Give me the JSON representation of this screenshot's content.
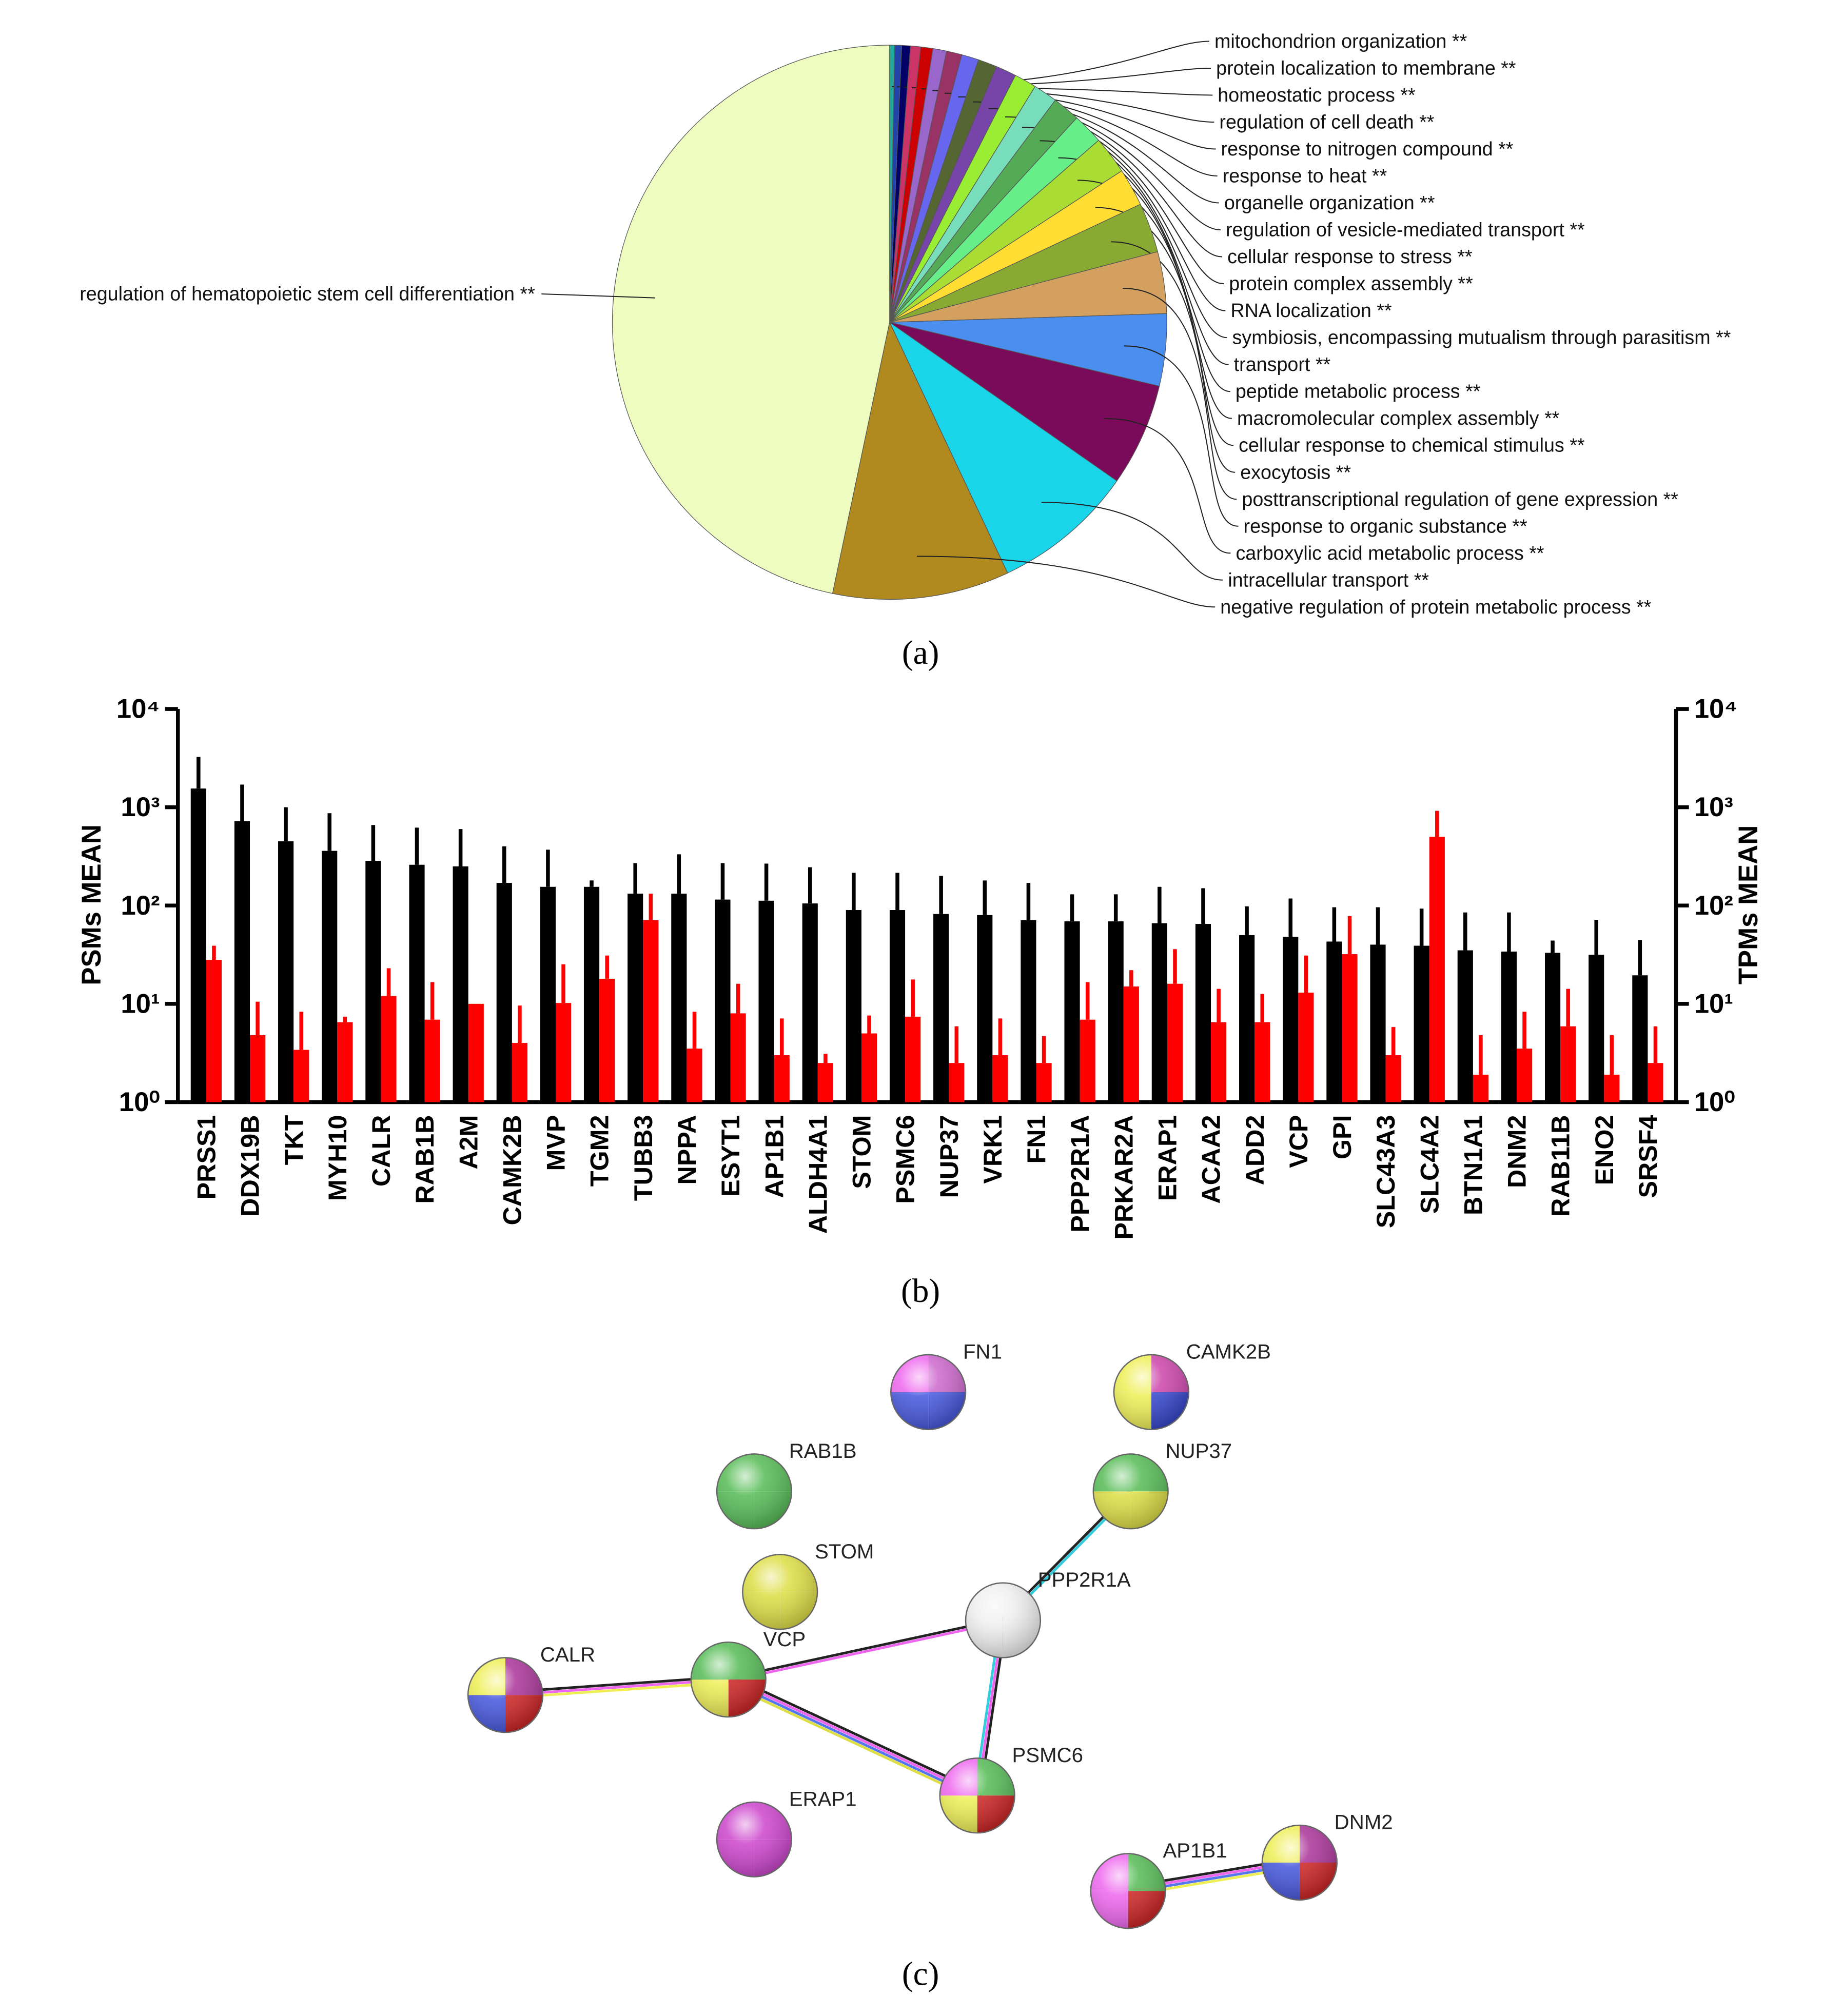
{
  "chart_data": [
    {
      "type": "pie",
      "panel_label": "(a)",
      "categories": [
        "mitochondrion organization **",
        "protein localization to membrane **",
        "homeostatic process **",
        "regulation of cell death **",
        "response to nitrogen compound **",
        "response to heat **",
        "organelle organization **",
        "regulation of vesicle-mediated transport **",
        "cellular response to stress **",
        "protein complex assembly **",
        "RNA localization **",
        "symbiosis, encompassing mutualism through parasitism **",
        "transport **",
        "peptide metabolic process **",
        "macromolecular complex assembly **",
        "cellular response to chemical stimulus **",
        "exocytosis **",
        "posttranscriptional regulation of gene expression **",
        "response to organic substance **",
        "carboxylic acid metabolic process **",
        "intracellular transport **",
        "negative regulation of protein metabolic process **",
        "regulation of hematopoietic stem cell differentiation **"
      ],
      "values": [
        0.3,
        0.4,
        0.5,
        0.6,
        0.7,
        0.8,
        0.9,
        1.0,
        1.1,
        1.2,
        1.3,
        1.4,
        1.6,
        1.8,
        2.2,
        2.2,
        2.9,
        3.6,
        4.2,
        6.0,
        8.3,
        10.3,
        46.7
      ],
      "colors": [
        "#22aa99",
        "#2244aa",
        "#000066",
        "#cc3366",
        "#cc0000",
        "#9966cc",
        "#993366",
        "#6666ee",
        "#556633",
        "#7744aa",
        "#99ee33",
        "#77ddbb",
        "#55aa55",
        "#66ee88",
        "#aadd33",
        "#ffdd33",
        "#88aa33",
        "#d4a060",
        "#4a8ff0",
        "#7a0a5a",
        "#1ad4ea",
        "#b08a1e",
        "#eefcc0"
      ]
    },
    {
      "type": "bar",
      "panel_label": "(b)",
      "yscale": "log",
      "y_label": "PSMs MEAN",
      "y2_label": "TPMs MEAN",
      "categories": [
        "PRSS1",
        "DDX19B",
        "TKT",
        "MYH10",
        "CALR",
        "RAB1B",
        "A2M",
        "CAMK2B",
        "MVP",
        "TGM2",
        "TUBB3",
        "NPPA",
        "ESYT1",
        "AP1B1",
        "ALDH4A1",
        "STOM",
        "PSMC6",
        "NUP37",
        "VRK1",
        "FN1",
        "PPP2R1A",
        "PRKAR2A",
        "ERAP1",
        "ACAA2",
        "ADD2",
        "VCP",
        "GPI",
        "SLC43A3",
        "SLC4A2",
        "BTN1A1",
        "DNM2",
        "RAB11B",
        "ENO2",
        "SRSF4"
      ],
      "series": [
        {
          "name": "PSMs MEAN",
          "color": "#000000",
          "values": [
            1550,
            720,
            450,
            360,
            285,
            260,
            250,
            170,
            155,
            155,
            132,
            132,
            115,
            112,
            105,
            90,
            90,
            82,
            80,
            71,
            69,
            69,
            66,
            65,
            50,
            48,
            43,
            40,
            39,
            35,
            34,
            33,
            31.5,
            19.5
          ],
          "errors": [
            1700,
            980,
            550,
            510,
            375,
            360,
            350,
            230,
            215,
            25,
            138,
            200,
            155,
            155,
            140,
            125,
            125,
            118,
            100,
            99,
            61,
            61,
            89,
            85,
            48,
            70,
            53,
            56,
            54,
            50,
            51,
            11,
            40,
            25
          ]
        },
        {
          "name": "TPMs MEAN",
          "color": "#ff0000",
          "axis": "y2",
          "values": [
            28,
            4.8,
            3.4,
            6.5,
            12,
            6.9,
            10,
            4.0,
            10.2,
            18,
            71,
            3.5,
            8.0,
            3.0,
            2.5,
            5.0,
            7.4,
            2.5,
            3.0,
            2.5,
            6.9,
            15,
            16,
            6.5,
            6.5,
            13,
            32,
            3.0,
            500,
            1.9,
            3.5,
            5.9,
            1.9,
            2.5
          ],
          "errors": [
            11,
            5.7,
            4.9,
            0.9,
            11,
            9.7,
            null,
            5.6,
            15,
            13,
            61,
            4.8,
            8,
            4.1,
            0.6,
            2.6,
            10.3,
            3.4,
            4.1,
            2.2,
            9.7,
            7,
            20,
            7.7,
            6.1,
            18,
            46,
            2.8,
            420,
            2.9,
            4.8,
            8.3,
            2.9,
            3.4
          ]
        }
      ],
      "ylim": [
        1,
        10000
      ],
      "yticks": [
        {
          "value": 1,
          "label": "10⁰"
        },
        {
          "value": 10,
          "label": "10¹"
        },
        {
          "value": 100,
          "label": "10²"
        },
        {
          "value": 1000,
          "label": "10³"
        },
        {
          "value": 10000,
          "label": "10⁴"
        }
      ],
      "y2lim": [
        1,
        10000
      ],
      "y2ticks": [
        {
          "value": 1,
          "label": "10⁰"
        },
        {
          "value": 10,
          "label": "10¹"
        },
        {
          "value": 100,
          "label": "10²"
        },
        {
          "value": 1000,
          "label": "10³"
        },
        {
          "value": 10000,
          "label": "10⁴"
        }
      ]
    }
  ],
  "network": {
    "panel_label": "(c)",
    "nodes": [
      {
        "label": "FN1"
      },
      {
        "label": "CAMK2B"
      },
      {
        "label": "RAB1B"
      },
      {
        "label": "NUP37"
      },
      {
        "label": "STOM"
      },
      {
        "label": "PPP2R1A"
      },
      {
        "label": "CALR"
      },
      {
        "label": "VCP"
      },
      {
        "label": "PSMC6"
      },
      {
        "label": "ERAP1"
      },
      {
        "label": "AP1B1"
      },
      {
        "label": "DNM2"
      }
    ]
  }
}
